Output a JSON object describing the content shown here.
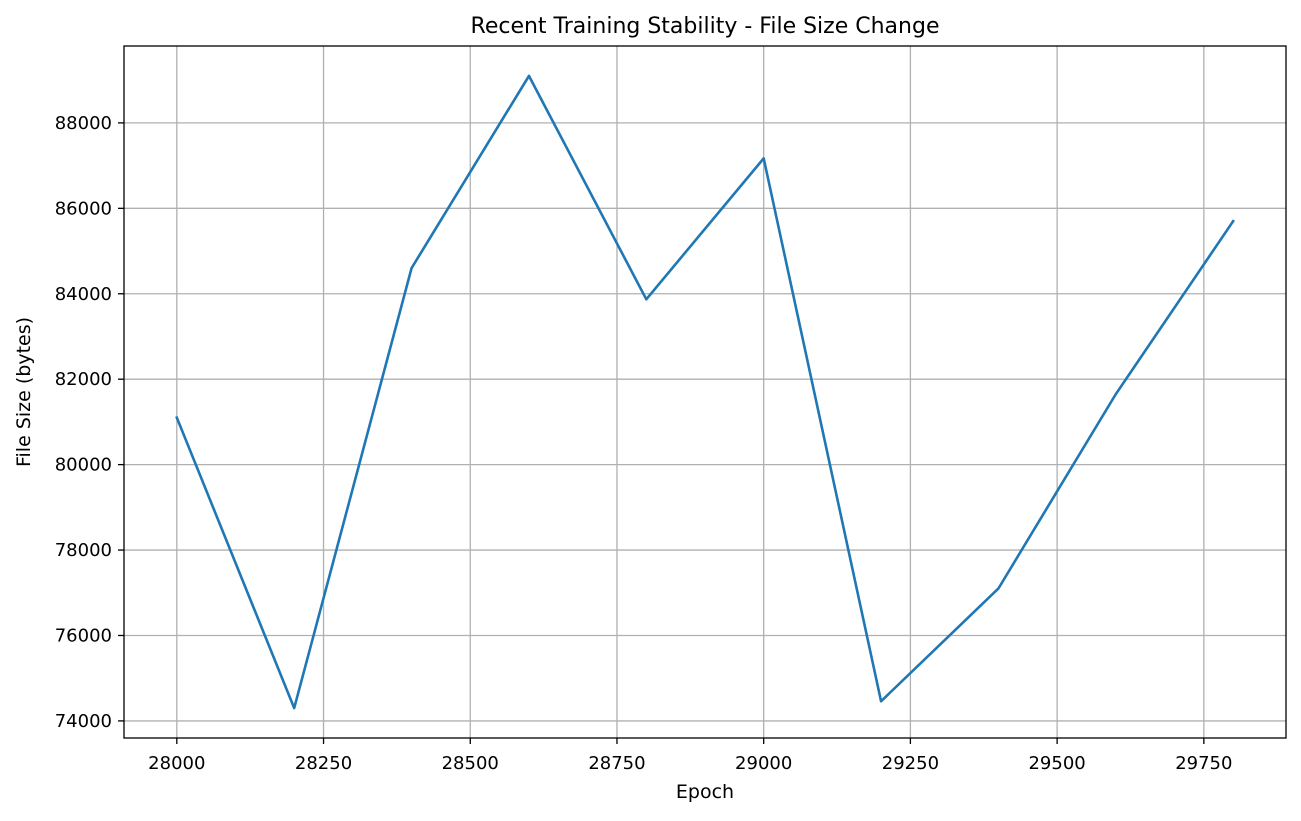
{
  "chart_data": {
    "type": "line",
    "title": "Recent Training Stability - File Size Change",
    "xlabel": "Epoch",
    "ylabel": "File Size (bytes)",
    "xlim": [
      27910,
      29890
    ],
    "ylim": [
      73600,
      89800
    ],
    "xticks": [
      28000,
      28250,
      28500,
      28750,
      29000,
      29250,
      29500,
      29750
    ],
    "yticks": [
      74000,
      76000,
      78000,
      80000,
      82000,
      84000,
      86000,
      88000
    ],
    "grid": true,
    "series": [
      {
        "color": "#1f77b4",
        "x": [
          28000,
          28200,
          28400,
          28600,
          28800,
          29000,
          29200,
          29400,
          29600,
          29800
        ],
        "y": [
          81100,
          74300,
          84600,
          89100,
          83870,
          87170,
          74460,
          77100,
          81650,
          85700
        ]
      }
    ]
  }
}
